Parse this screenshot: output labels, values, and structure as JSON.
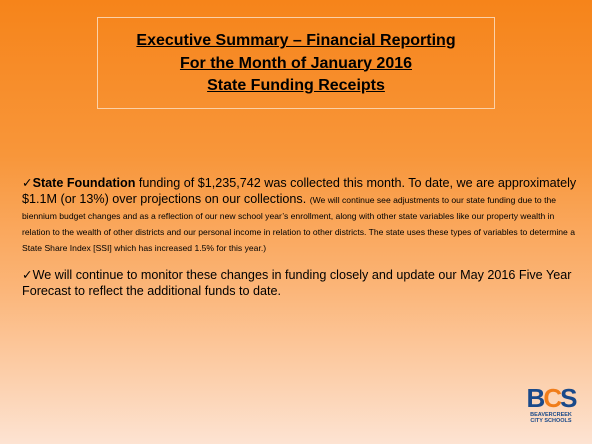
{
  "title": {
    "lines": [
      "Executive Summary – Financial Reporting",
      "For the Month of January 2016",
      "State Funding Receipts"
    ]
  },
  "paragraphs": [
    {
      "bullet": "✓",
      "bold": "State Foundation",
      "text": " funding of $1,235,742 was collected this month.  To date, we are approximately $1.1M (or 13%) over projections on our collections. ",
      "note": "(We will continue see adjustments to our state funding due to the biennium budget changes and as a reflection of our new school year’s enrollment, along with other state variables like our property wealth in relation to the wealth of other districts and our personal income in relation to other districts.  The state uses these types of variables to determine a State Share Index [SSI] which has increased 1.5% for this year.)"
    },
    {
      "bullet": "✓",
      "text": "We will continue to monitor these changes in funding closely and update our May 2016 Five Year Forecast to reflect the additional funds to date."
    }
  ],
  "logo": {
    "b": "B",
    "c": "C",
    "s": "S",
    "name": [
      "BEAVERCREEK",
      "CITY SCHOOLS"
    ]
  }
}
